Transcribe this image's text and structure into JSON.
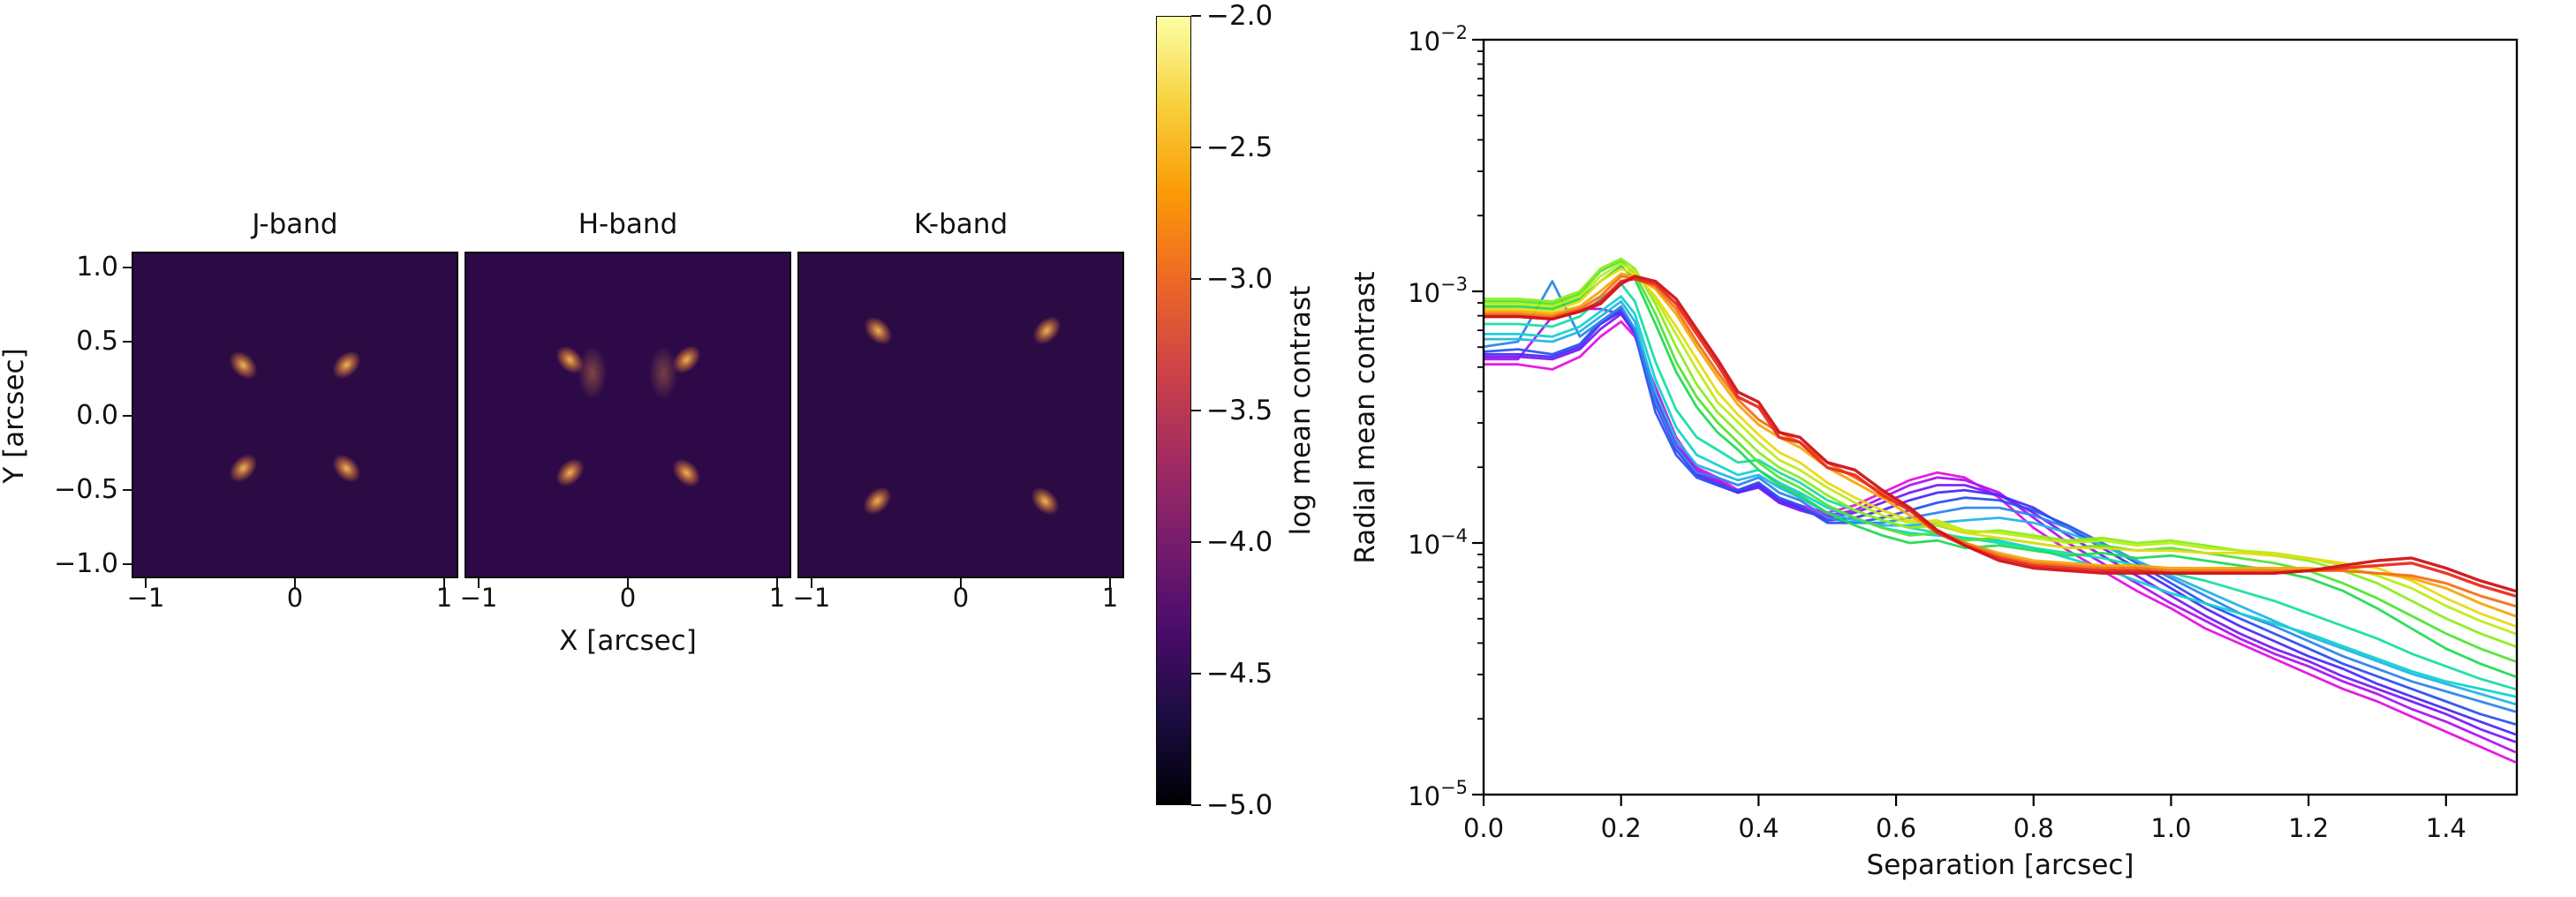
{
  "figure": {
    "background": "#ffffff"
  },
  "chart_data": [
    {
      "type": "heatmap",
      "panel_titles": [
        "J-band",
        "H-band",
        "K-band"
      ],
      "xlabel": "X [arcsec]",
      "ylabel": "Y [arcsec]",
      "xtick_labels": [
        "−1",
        "0",
        "1"
      ],
      "ytick_labels": [
        "1.0",
        "0.5",
        "0.0",
        "−0.5",
        "−1.0"
      ],
      "xlim": [
        -1.1,
        1.1
      ],
      "ylim": [
        -1.1,
        1.1
      ],
      "colorbar": {
        "label": "log mean contrast",
        "tick_labels": [
          "−2.0",
          "−2.5",
          "−3.0",
          "−3.5",
          "−4.0",
          "−4.5",
          "−5.0"
        ],
        "value_range_top_to_bottom": [
          -2.0,
          -5.0
        ],
        "gradient_top_to_bottom": [
          "#fcffa4",
          "#f7d13d",
          "#fb9b06",
          "#ed6925",
          "#cf4446",
          "#a52c60",
          "#781c6d",
          "#4a0c6b",
          "#1b0c41",
          "#000004"
        ]
      }
    },
    {
      "type": "line",
      "title": "",
      "xlabel": "Separation [arcsec]",
      "ylabel": "Radial mean contrast",
      "xlim": [
        0,
        1.503
      ],
      "ylog10_range": [
        -5,
        -2
      ],
      "grid": false,
      "legend": false,
      "xtick_values": [
        0.0,
        0.2,
        0.4,
        0.6,
        0.8,
        1.0,
        1.2,
        1.4
      ],
      "xtick_labels": [
        "0.0",
        "0.2",
        "0.4",
        "0.6",
        "0.8",
        "1.0",
        "1.2",
        "1.4"
      ],
      "ytick_values": [
        -2,
        -3,
        -4,
        -5
      ],
      "ytick_base": "10",
      "ytick_exponents": [
        "−2",
        "−3",
        "−4",
        "−5"
      ],
      "x": [
        0.0,
        0.05,
        0.1,
        0.14,
        0.17,
        0.2,
        0.22,
        0.25,
        0.28,
        0.31,
        0.34,
        0.37,
        0.4,
        0.43,
        0.46,
        0.5,
        0.54,
        0.58,
        0.62,
        0.66,
        0.7,
        0.75,
        0.8,
        0.85,
        0.9,
        0.95,
        1.0,
        1.05,
        1.1,
        1.15,
        1.2,
        1.25,
        1.3,
        1.35,
        1.4,
        1.45,
        1.5
      ],
      "series": [
        {
          "name": "line-01",
          "color": "#e412e0",
          "width": 2.8,
          "log10_y": [
            -3.29,
            -3.29,
            -3.31,
            -3.26,
            -3.18,
            -3.12,
            -3.18,
            -3.38,
            -3.58,
            -3.7,
            -3.74,
            -3.79,
            -3.76,
            -3.83,
            -3.85,
            -3.88,
            -3.85,
            -3.8,
            -3.75,
            -3.72,
            -3.74,
            -3.82,
            -3.94,
            -4.03,
            -4.11,
            -4.19,
            -4.26,
            -4.34,
            -4.4,
            -4.46,
            -4.52,
            -4.58,
            -4.63,
            -4.69,
            -4.75,
            -4.81,
            -4.87
          ]
        },
        {
          "name": "line-02",
          "color": "#ae14ee",
          "width": 2.8,
          "log10_y": [
            -3.27,
            -3.27,
            -3.1,
            -3.07,
            -3.07,
            -3.09,
            -3.17,
            -3.39,
            -3.59,
            -3.71,
            -3.75,
            -3.8,
            -3.77,
            -3.84,
            -3.86,
            -3.89,
            -3.87,
            -3.82,
            -3.77,
            -3.74,
            -3.75,
            -3.8,
            -3.9,
            -4.0,
            -4.08,
            -4.16,
            -4.24,
            -4.31,
            -4.38,
            -4.44,
            -4.49,
            -4.55,
            -4.6,
            -4.66,
            -4.71,
            -4.77,
            -4.83
          ]
        },
        {
          "name": "line-03",
          "color": "#7a1cf8",
          "width": 2.8,
          "log10_y": [
            -3.26,
            -3.26,
            -3.27,
            -3.23,
            -3.15,
            -3.09,
            -3.16,
            -3.42,
            -3.61,
            -3.72,
            -3.76,
            -3.8,
            -3.78,
            -3.84,
            -3.87,
            -3.9,
            -3.88,
            -3.84,
            -3.8,
            -3.77,
            -3.77,
            -3.81,
            -3.88,
            -3.97,
            -4.05,
            -4.13,
            -4.21,
            -4.29,
            -4.36,
            -4.42,
            -4.47,
            -4.53,
            -4.58,
            -4.63,
            -4.68,
            -4.74,
            -4.79
          ]
        },
        {
          "name": "line-04",
          "color": "#4b2df6",
          "width": 2.8,
          "log10_y": [
            -3.25,
            -3.25,
            -3.26,
            -3.22,
            -3.13,
            -3.08,
            -3.16,
            -3.45,
            -3.63,
            -3.73,
            -3.77,
            -3.8,
            -3.77,
            -3.83,
            -3.86,
            -3.91,
            -3.9,
            -3.87,
            -3.83,
            -3.8,
            -3.79,
            -3.81,
            -3.86,
            -3.94,
            -4.02,
            -4.1,
            -4.18,
            -4.26,
            -4.33,
            -4.39,
            -4.45,
            -4.5,
            -4.56,
            -4.61,
            -4.66,
            -4.71,
            -4.76
          ]
        },
        {
          "name": "line-05",
          "color": "#2b52f0",
          "width": 2.8,
          "log10_y": [
            -3.24,
            -3.23,
            -3.25,
            -3.21,
            -3.12,
            -3.07,
            -3.17,
            -3.48,
            -3.65,
            -3.74,
            -3.77,
            -3.79,
            -3.76,
            -3.82,
            -3.85,
            -3.92,
            -3.92,
            -3.9,
            -3.87,
            -3.84,
            -3.82,
            -3.83,
            -3.87,
            -3.93,
            -4.0,
            -4.08,
            -4.16,
            -4.24,
            -4.3,
            -4.36,
            -4.42,
            -4.48,
            -4.53,
            -4.58,
            -4.63,
            -4.68,
            -4.72
          ]
        },
        {
          "name": "line-06",
          "color": "#2e86ea",
          "width": 2.8,
          "log10_y": [
            -3.22,
            -3.2,
            -2.96,
            -3.18,
            -3.12,
            -3.06,
            -3.15,
            -3.44,
            -3.62,
            -3.72,
            -3.74,
            -3.77,
            -3.74,
            -3.8,
            -3.83,
            -3.9,
            -3.92,
            -3.92,
            -3.9,
            -3.88,
            -3.86,
            -3.86,
            -3.89,
            -3.94,
            -4.0,
            -4.07,
            -4.14,
            -4.21,
            -4.28,
            -4.33,
            -4.39,
            -4.45,
            -4.5,
            -4.55,
            -4.59,
            -4.63,
            -4.67
          ]
        },
        {
          "name": "line-07",
          "color": "#26b4e6",
          "width": 2.8,
          "log10_y": [
            -3.19,
            -3.19,
            -3.2,
            -3.16,
            -3.1,
            -3.04,
            -3.12,
            -3.4,
            -3.59,
            -3.69,
            -3.72,
            -3.75,
            -3.73,
            -3.78,
            -3.82,
            -3.88,
            -3.91,
            -3.93,
            -3.93,
            -3.92,
            -3.91,
            -3.9,
            -3.92,
            -3.96,
            -4.01,
            -4.07,
            -4.13,
            -4.19,
            -4.25,
            -4.31,
            -4.37,
            -4.42,
            -4.47,
            -4.52,
            -4.56,
            -4.6,
            -4.64
          ]
        },
        {
          "name": "line-08",
          "color": "#12d2d2",
          "width": 2.8,
          "log10_y": [
            -3.17,
            -3.17,
            -3.18,
            -3.14,
            -3.08,
            -3.02,
            -3.09,
            -3.35,
            -3.54,
            -3.65,
            -3.69,
            -3.73,
            -3.71,
            -3.76,
            -3.8,
            -3.86,
            -3.9,
            -3.94,
            -3.96,
            -3.97,
            -3.98,
            -3.99,
            -4.02,
            -4.06,
            -4.1,
            -4.15,
            -4.2,
            -4.24,
            -4.28,
            -4.32,
            -4.36,
            -4.41,
            -4.46,
            -4.51,
            -4.55,
            -4.58,
            -4.61
          ]
        },
        {
          "name": "line-09",
          "color": "#16dea6",
          "width": 2.8,
          "log10_y": [
            -3.13,
            -3.13,
            -3.14,
            -3.1,
            -3.03,
            -2.97,
            -3.04,
            -3.28,
            -3.47,
            -3.58,
            -3.63,
            -3.68,
            -3.67,
            -3.72,
            -3.76,
            -3.83,
            -3.87,
            -3.91,
            -3.94,
            -3.96,
            -3.98,
            -4.0,
            -4.02,
            -4.04,
            -4.06,
            -4.09,
            -4.12,
            -4.15,
            -4.19,
            -4.23,
            -4.28,
            -4.33,
            -4.38,
            -4.44,
            -4.49,
            -4.54,
            -4.58
          ]
        },
        {
          "name": "line-10",
          "color": "#22da55",
          "width": 2.8,
          "log10_y": [
            -3.06,
            -3.06,
            -3.07,
            -3.03,
            -2.96,
            -2.9,
            -2.95,
            -3.13,
            -3.32,
            -3.46,
            -3.56,
            -3.63,
            -3.71,
            -3.77,
            -3.81,
            -3.88,
            -3.93,
            -3.97,
            -4.0,
            -3.99,
            -4.02,
            -4.01,
            -4.03,
            -4.05,
            -4.04,
            -4.06,
            -4.05,
            -4.07,
            -4.09,
            -4.11,
            -4.14,
            -4.19,
            -4.26,
            -4.34,
            -4.42,
            -4.48,
            -4.53
          ]
        },
        {
          "name": "line-11",
          "color": "#52e432",
          "width": 2.8,
          "log10_y": [
            -3.04,
            -3.04,
            -3.05,
            -3.01,
            -2.92,
            -2.88,
            -2.93,
            -3.09,
            -3.28,
            -3.42,
            -3.52,
            -3.6,
            -3.68,
            -3.74,
            -3.78,
            -3.85,
            -3.9,
            -3.94,
            -3.97,
            -3.96,
            -3.99,
            -3.98,
            -4.0,
            -4.02,
            -4.01,
            -4.03,
            -4.02,
            -4.04,
            -4.06,
            -4.08,
            -4.11,
            -4.16,
            -4.22,
            -4.29,
            -4.36,
            -4.42,
            -4.47
          ]
        },
        {
          "name": "line-12",
          "color": "#8cec1e",
          "width": 2.8,
          "log10_y": [
            -3.03,
            -3.03,
            -3.04,
            -3.0,
            -2.91,
            -2.87,
            -2.91,
            -3.05,
            -3.22,
            -3.37,
            -3.48,
            -3.56,
            -3.64,
            -3.7,
            -3.74,
            -3.81,
            -3.87,
            -3.91,
            -3.94,
            -3.93,
            -3.96,
            -3.95,
            -3.97,
            -3.99,
            -3.98,
            -4.0,
            -3.99,
            -4.01,
            -4.03,
            -4.05,
            -4.07,
            -4.11,
            -4.16,
            -4.23,
            -4.3,
            -4.36,
            -4.41
          ]
        },
        {
          "name": "line-13",
          "color": "#bcec16",
          "width": 2.8,
          "log10_y": [
            -3.05,
            -3.05,
            -3.06,
            -3.02,
            -2.94,
            -2.89,
            -2.92,
            -3.03,
            -3.17,
            -3.31,
            -3.44,
            -3.52,
            -3.6,
            -3.67,
            -3.71,
            -3.78,
            -3.84,
            -3.89,
            -3.92,
            -3.91,
            -3.95,
            -3.96,
            -3.98,
            -4.0,
            -3.99,
            -4.01,
            -4.0,
            -4.02,
            -4.03,
            -4.04,
            -4.06,
            -4.09,
            -4.13,
            -4.18,
            -4.25,
            -4.31,
            -4.36
          ]
        },
        {
          "name": "line-14",
          "color": "#e8da12",
          "width": 2.8,
          "log10_y": [
            -3.07,
            -3.07,
            -3.08,
            -3.04,
            -2.96,
            -2.91,
            -2.93,
            -3.02,
            -3.14,
            -3.27,
            -3.4,
            -3.49,
            -3.57,
            -3.64,
            -3.68,
            -3.76,
            -3.82,
            -3.87,
            -3.91,
            -3.92,
            -3.96,
            -3.98,
            -4.0,
            -4.02,
            -4.02,
            -4.03,
            -4.03,
            -4.04,
            -4.04,
            -4.05,
            -4.06,
            -4.08,
            -4.1,
            -4.15,
            -4.22,
            -4.28,
            -4.33
          ]
        },
        {
          "name": "line-15",
          "color": "#f6a60e",
          "width": 3.0,
          "log10_y": [
            -3.08,
            -3.08,
            -3.09,
            -3.06,
            -3.0,
            -2.93,
            -2.94,
            -2.99,
            -3.09,
            -3.22,
            -3.34,
            -3.45,
            -3.53,
            -3.58,
            -3.62,
            -3.7,
            -3.76,
            -3.82,
            -3.89,
            -3.96,
            -4.0,
            -4.04,
            -4.07,
            -4.08,
            -4.09,
            -4.09,
            -4.1,
            -4.1,
            -4.1,
            -4.1,
            -4.1,
            -4.11,
            -4.12,
            -4.14,
            -4.18,
            -4.24,
            -4.29
          ]
        },
        {
          "name": "line-16",
          "color": "#f4711a",
          "width": 3.0,
          "log10_y": [
            -3.09,
            -3.09,
            -3.1,
            -3.07,
            -3.02,
            -2.94,
            -2.95,
            -2.98,
            -3.07,
            -3.2,
            -3.32,
            -3.43,
            -3.51,
            -3.56,
            -3.6,
            -3.68,
            -3.74,
            -3.8,
            -3.87,
            -3.95,
            -4.0,
            -4.05,
            -4.08,
            -4.09,
            -4.1,
            -4.1,
            -4.11,
            -4.11,
            -4.11,
            -4.11,
            -4.11,
            -4.11,
            -4.12,
            -4.13,
            -4.16,
            -4.21,
            -4.25
          ]
        },
        {
          "name": "line-17",
          "color": "#ea2c20",
          "width": 3.4,
          "log10_y": [
            -3.1,
            -3.1,
            -3.11,
            -3.08,
            -3.04,
            -2.96,
            -2.95,
            -2.97,
            -3.05,
            -3.17,
            -3.29,
            -3.42,
            -3.46,
            -3.58,
            -3.6,
            -3.7,
            -3.73,
            -3.81,
            -3.87,
            -3.96,
            -4.01,
            -4.06,
            -4.09,
            -4.1,
            -4.11,
            -4.11,
            -4.12,
            -4.12,
            -4.12,
            -4.12,
            -4.11,
            -4.1,
            -4.09,
            -4.08,
            -4.12,
            -4.17,
            -4.21
          ]
        },
        {
          "name": "line-18",
          "color": "#cf1418",
          "width": 3.4,
          "log10_y": [
            -3.1,
            -3.1,
            -3.11,
            -3.08,
            -3.05,
            -2.97,
            -2.94,
            -2.96,
            -3.03,
            -3.15,
            -3.27,
            -3.4,
            -3.44,
            -3.56,
            -3.58,
            -3.68,
            -3.71,
            -3.79,
            -3.86,
            -3.95,
            -4.01,
            -4.07,
            -4.1,
            -4.11,
            -4.12,
            -4.12,
            -4.12,
            -4.12,
            -4.12,
            -4.12,
            -4.11,
            -4.09,
            -4.07,
            -4.06,
            -4.1,
            -4.15,
            -4.19
          ]
        }
      ]
    }
  ]
}
